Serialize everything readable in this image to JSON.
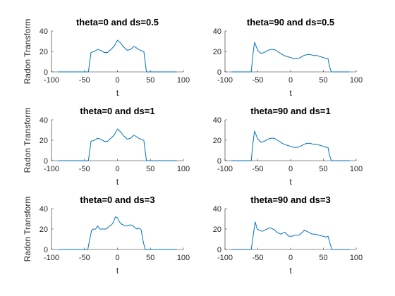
{
  "chart_data": [
    {
      "type": "line",
      "title": "theta=0 and ds=0.5",
      "xlabel": "t",
      "ylabel": "Radon Transform",
      "xlim": [
        -100,
        100
      ],
      "ylim": [
        0,
        40
      ],
      "xticks": [
        -100,
        -50,
        0,
        50,
        100
      ],
      "yticks": [
        0,
        20,
        40
      ],
      "series_color": "#0072BD",
      "x": [
        -90,
        -50,
        -44,
        -42,
        -40,
        -35,
        -30,
        -25,
        -20,
        -15,
        -10,
        -5,
        0,
        5,
        10,
        15,
        20,
        25,
        30,
        35,
        40,
        42,
        44,
        50,
        90
      ],
      "y": [
        0,
        0,
        0,
        10,
        19,
        20,
        22,
        21,
        19,
        19,
        22,
        25,
        31,
        28,
        24,
        21,
        22,
        25,
        23,
        21,
        20,
        10,
        0,
        0,
        0
      ]
    },
    {
      "type": "line",
      "title": "theta=90 and ds=0.5",
      "xlabel": "t",
      "ylabel": "",
      "xlim": [
        -100,
        100
      ],
      "ylim": [
        0,
        40
      ],
      "xticks": [
        -100,
        -50,
        0,
        50,
        100
      ],
      "yticks": [
        0,
        20,
        40
      ],
      "series_color": "#0072BD",
      "x": [
        -90,
        -62,
        -60,
        -58,
        -55,
        -50,
        -45,
        -40,
        -35,
        -30,
        -25,
        -20,
        -15,
        -10,
        -5,
        0,
        5,
        10,
        15,
        20,
        25,
        30,
        35,
        40,
        45,
        50,
        55,
        57,
        59,
        62,
        90
      ],
      "y": [
        0,
        0,
        0,
        14,
        29,
        21,
        18,
        19,
        21,
        22,
        22,
        20,
        18,
        16,
        15,
        14,
        13,
        13,
        14,
        16,
        17,
        17,
        16,
        16,
        15,
        14,
        13,
        13,
        6,
        0,
        0
      ]
    },
    {
      "type": "line",
      "title": "theta=0 and ds=1",
      "xlabel": "t",
      "ylabel": "Radon Transform",
      "xlim": [
        -100,
        100
      ],
      "ylim": [
        0,
        40
      ],
      "xticks": [
        -100,
        -50,
        0,
        50,
        100
      ],
      "yticks": [
        0,
        20,
        40
      ],
      "series_color": "#0072BD",
      "x": [
        -90,
        -50,
        -44,
        -42,
        -40,
        -35,
        -30,
        -25,
        -20,
        -15,
        -10,
        -5,
        0,
        5,
        10,
        15,
        20,
        25,
        30,
        35,
        40,
        42,
        44,
        50,
        90
      ],
      "y": [
        0,
        0,
        0,
        10,
        19,
        20,
        22,
        21,
        19,
        19,
        22,
        25,
        31,
        28,
        24,
        21,
        22,
        25,
        23,
        21,
        20,
        10,
        0,
        0,
        0
      ]
    },
    {
      "type": "line",
      "title": "theta=90 and ds=1",
      "xlabel": "t",
      "ylabel": "",
      "xlim": [
        -100,
        100
      ],
      "ylim": [
        0,
        40
      ],
      "xticks": [
        -100,
        -50,
        0,
        50,
        100
      ],
      "yticks": [
        0,
        20,
        40
      ],
      "series_color": "#0072BD",
      "x": [
        -90,
        -62,
        -60,
        -58,
        -55,
        -50,
        -45,
        -40,
        -35,
        -30,
        -25,
        -20,
        -15,
        -10,
        -5,
        0,
        5,
        10,
        15,
        20,
        25,
        30,
        35,
        40,
        45,
        50,
        55,
        57,
        59,
        62,
        90
      ],
      "y": [
        0,
        0,
        0,
        14,
        29,
        21,
        18,
        19,
        21,
        22,
        22,
        20,
        18,
        16,
        15,
        14,
        13,
        13,
        14,
        16,
        17,
        17,
        16,
        16,
        15,
        14,
        13,
        13,
        6,
        0,
        0
      ]
    },
    {
      "type": "line",
      "title": "theta=0 and ds=3",
      "xlabel": "t",
      "ylabel": "Radon Transform",
      "xlim": [
        -100,
        100
      ],
      "ylim": [
        0,
        40
      ],
      "xticks": [
        -100,
        -50,
        0,
        50,
        100
      ],
      "yticks": [
        0,
        20,
        40
      ],
      "series_color": "#0072BD",
      "x": [
        -90,
        -48,
        -45,
        -42,
        -39,
        -36,
        -33,
        -30,
        -27,
        -24,
        -21,
        -18,
        -15,
        -12,
        -9,
        -6,
        -3,
        0,
        3,
        6,
        9,
        12,
        15,
        18,
        21,
        24,
        27,
        30,
        33,
        36,
        39,
        42,
        45,
        48,
        90
      ],
      "y": [
        0,
        0,
        0,
        10,
        19,
        20,
        20,
        23,
        20,
        20,
        20,
        20,
        21,
        23,
        24,
        27,
        32,
        31,
        27,
        25,
        24,
        23,
        23,
        24,
        24,
        23,
        21,
        20,
        21,
        19,
        8,
        0,
        0,
        0,
        0
      ]
    },
    {
      "type": "line",
      "title": "theta=90 and ds=3",
      "xlabel": "t",
      "ylabel": "",
      "xlim": [
        -100,
        100
      ],
      "ylim": [
        0,
        40
      ],
      "xticks": [
        -100,
        -50,
        0,
        50,
        100
      ],
      "yticks": [
        0,
        20,
        40
      ],
      "series_color": "#0072BD",
      "x": [
        -90,
        -63,
        -60,
        -57,
        -54,
        -51,
        -48,
        -45,
        -42,
        -39,
        -36,
        -33,
        -30,
        -27,
        -24,
        -21,
        -18,
        -15,
        -12,
        -9,
        -6,
        -3,
        0,
        3,
        6,
        9,
        12,
        15,
        18,
        21,
        24,
        27,
        30,
        33,
        36,
        39,
        42,
        45,
        48,
        51,
        54,
        57,
        60,
        63,
        90
      ],
      "y": [
        0,
        0,
        0,
        14,
        27,
        20,
        19,
        18,
        18,
        19,
        20,
        21,
        21,
        20,
        19,
        17,
        16,
        15,
        16,
        17,
        15,
        13,
        13,
        13,
        14,
        14,
        14,
        15,
        17,
        19,
        18,
        17,
        16,
        15,
        15,
        15,
        14,
        14,
        13,
        13,
        12,
        13,
        6,
        0,
        0
      ]
    }
  ]
}
